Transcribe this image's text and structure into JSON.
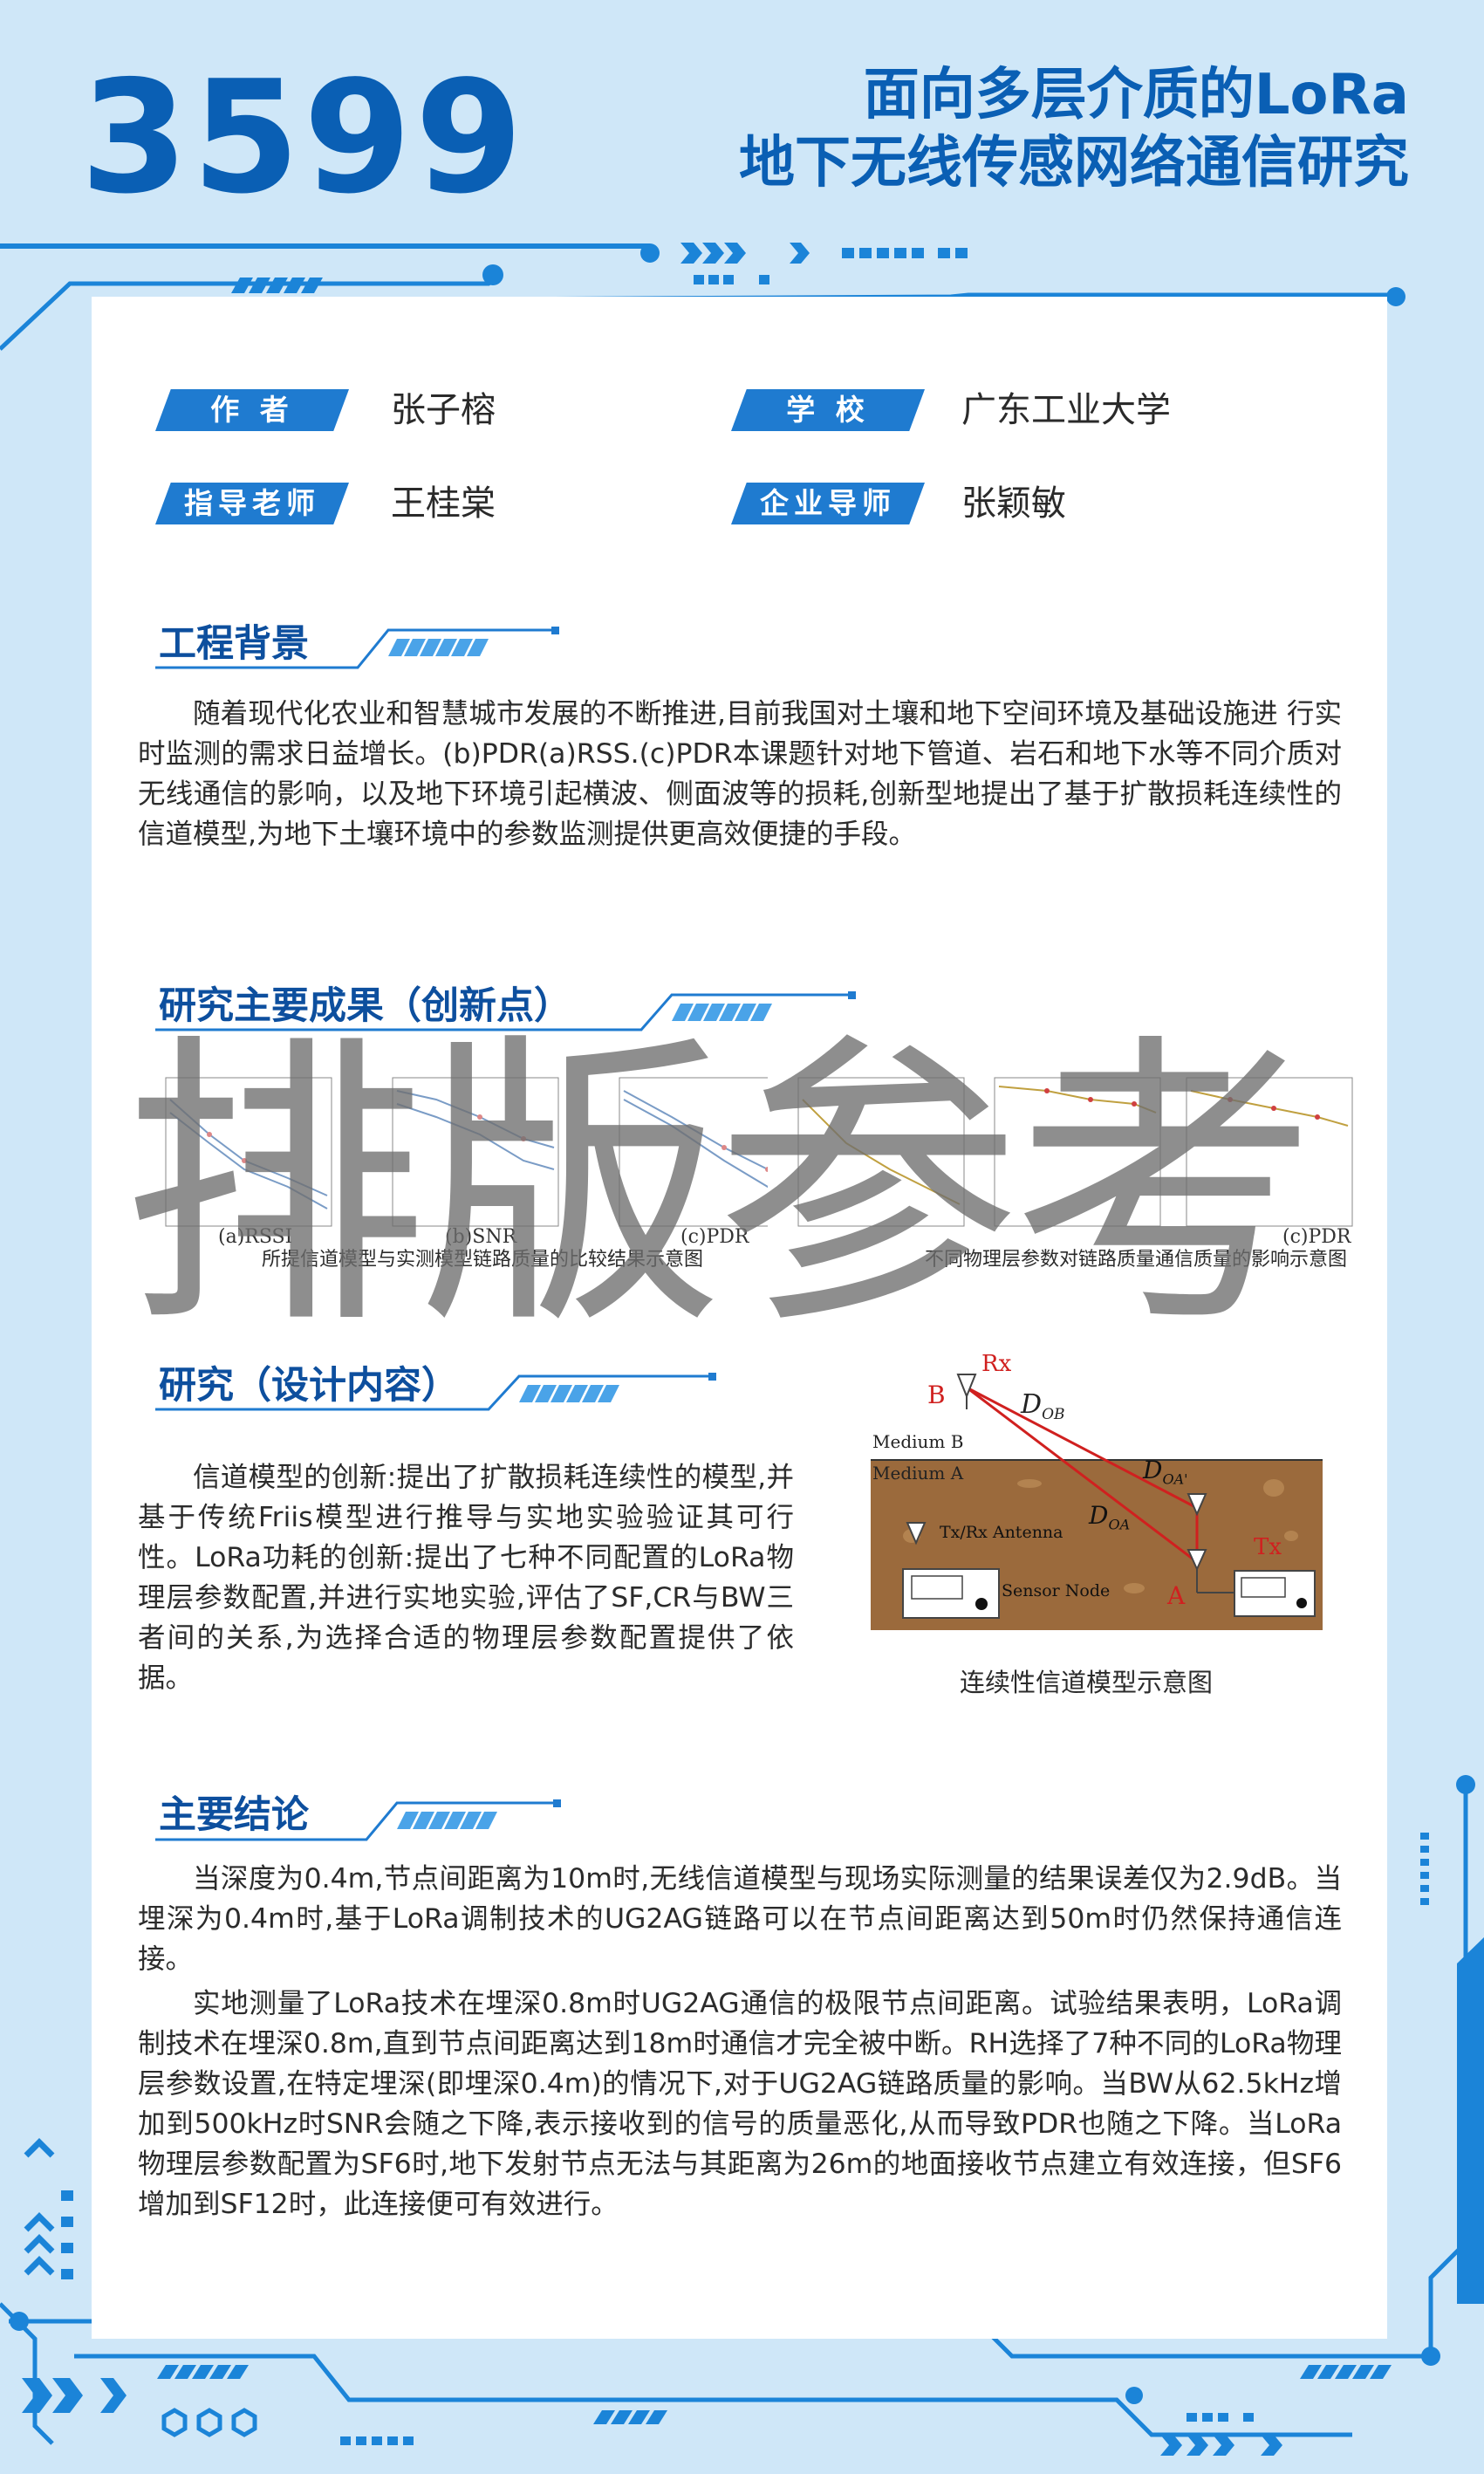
{
  "header": {
    "number": "3599",
    "title_line1": "面向多层介质的LoRa",
    "title_line2": "地下无线传感网络通信研究"
  },
  "info": {
    "author_label": "作 者",
    "author": "张子榕",
    "school_label": "学 校",
    "school": "广东工业大学",
    "advisor_label": "指导老师",
    "advisor": "王桂棠",
    "mentor_label": "企业导师",
    "mentor": "张颖敏"
  },
  "sections": {
    "background": {
      "title": "工程背景",
      "text": "随着现代化农业和智慧城市发展的不断推进,目前我国对土壤和地下空间环境及基础设施进 行实时监测的需求日益增长。(b)PDR(a)RSS.(c)PDR本课题针对地下管道、岩石和地下水等不同介质对无线通信的影响，以及地下环境引起横波、侧面波等的损耗,创新型地提出了基于扩散损耗连续性的信道模型,为地下土壤环境中的参数监测提供更高效便捷的手段。"
    },
    "results": {
      "title": "研究主要成果（创新点）",
      "caption_left": "所提信道模型与实测模型链路质量的比较结果示意图",
      "caption_right": "不同物理层参数对链路质量通信质量的影响示意图",
      "label_a": "(a)RSSI",
      "label_b": "(b)SNR",
      "label_c": "(c)PDR",
      "label_c2": "(c)PDR"
    },
    "design": {
      "title": "研究（设计内容）",
      "text": "信道模型的创新:提出了扩散损耗连续性的模型,并基于传统Friis模型进行推导与实地实验验证其可行性。LoRa功耗的创新:提出了七种不同配置的LoRa物理层参数配置,并进行实地实验,评估了SF,CR与BW三者间的关系,为选择合适的物理层参数配置提供了依据。",
      "figure_caption": "连续性信道模型示意图",
      "diagram": {
        "rx": "Rx",
        "tx": "Tx",
        "point_b": "B",
        "point_a": "A",
        "d_ob": "D",
        "d_ob_sub": "OB",
        "d_oa1": "D",
        "d_oa1_sub": "OA'",
        "d_oa": "D",
        "d_oa_sub": "OA",
        "medium_b": "Medium B",
        "medium_a": "Medium A",
        "antenna": "Tx/Rx Antenna",
        "sensor": "Sensor Node"
      }
    },
    "conclusion": {
      "title": "主要结论",
      "text1": "当深度为0.4m,节点间距离为10m时,无线信道模型与现场实际测量的结果误差仅为2.9dB。当埋深为0.4m时,基于LoRa调制技术的UG2AG链路可以在节点间距离达到50m时仍然保持通信连接。",
      "text2": "实地测量了LoRa技术在埋深0.8m时UG2AG通信的极限节点间距离。试验结果表明，LoRa调制技术在埋深0.8m,直到节点间距离达到18m时通信才完全被中断。RH选择了7种不同的LoRa物理层参数设置,在特定埋深(即埋深0.4m)的情况下,对于UG2AG链路质量的影响。当BW从62.5kHz增加到500kHz时SNR会随之下降,表示接收到的信号的质量恶化,从而导致PDR也随之下降。当LoRa物理层参数配置为SF6时,地下发射节点无法与其距离为26m的地面接收节点建立有效连接，但SF6增加到SF12时，此连接便可有效进行。"
    }
  },
  "watermark": "排版参考",
  "colors": {
    "primary": "#0a5fb4",
    "tag": "#1f7bd0",
    "background": "#cfe7f8",
    "red": "#d0201f"
  }
}
